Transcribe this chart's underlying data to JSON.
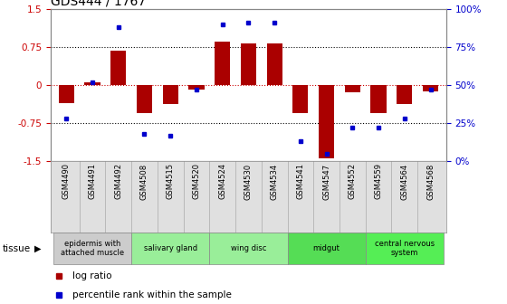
{
  "title": "GDS444 / 1767",
  "samples": [
    "GSM4490",
    "GSM4491",
    "GSM4492",
    "GSM4508",
    "GSM4515",
    "GSM4520",
    "GSM4524",
    "GSM4530",
    "GSM4534",
    "GSM4541",
    "GSM4547",
    "GSM4552",
    "GSM4559",
    "GSM4564",
    "GSM4568"
  ],
  "log_ratio": [
    -0.35,
    0.05,
    0.68,
    -0.55,
    -0.38,
    -0.08,
    0.85,
    0.82,
    0.82,
    -0.55,
    -1.45,
    -0.15,
    -0.55,
    -0.38,
    -0.12
  ],
  "percentile": [
    28,
    52,
    88,
    18,
    17,
    47,
    90,
    91,
    91,
    13,
    5,
    22,
    22,
    28,
    47
  ],
  "ylim": [
    -1.5,
    1.5
  ],
  "yticks_left": [
    -1.5,
    -0.75,
    0,
    0.75,
    1.5
  ],
  "yticks_right": [
    0,
    25,
    50,
    75,
    100
  ],
  "bar_color": "#AA0000",
  "dot_color": "#0000CC",
  "hline_color": "#CC0000",
  "grid_color": "#000000",
  "tissue_groups": [
    {
      "label": "epidermis with\nattached muscle",
      "start": 0,
      "end": 2,
      "color": "#cccccc"
    },
    {
      "label": "salivary gland",
      "start": 3,
      "end": 5,
      "color": "#99ee99"
    },
    {
      "label": "wing disc",
      "start": 6,
      "end": 8,
      "color": "#99ee99"
    },
    {
      "label": "midgut",
      "start": 9,
      "end": 11,
      "color": "#55dd55"
    },
    {
      "label": "central nervous\nsystem",
      "start": 12,
      "end": 14,
      "color": "#55ee55"
    }
  ],
  "tissue_label": "tissue",
  "legend_log_ratio": "log ratio",
  "legend_percentile": "percentile rank within the sample",
  "bg_color": "#ffffff",
  "tick_label_color_left": "#CC0000",
  "tick_label_color_right": "#0000CC"
}
